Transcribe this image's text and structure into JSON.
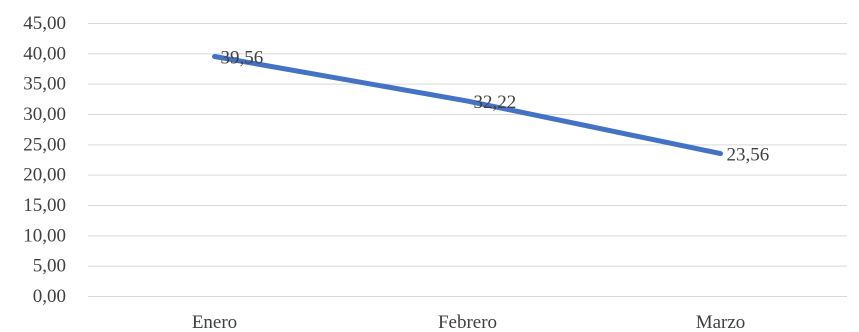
{
  "chart_data": {
    "type": "line",
    "categories": [
      "Enero",
      "Febrero",
      "Marzo"
    ],
    "series": [
      {
        "values": [
          39.56,
          32.22,
          23.56
        ],
        "value_labels": [
          "39,56",
          "32,22",
          "23,56"
        ],
        "color": "#4472c4"
      }
    ],
    "ylim": [
      0,
      45
    ],
    "y_ticks": [
      0,
      5,
      10,
      15,
      20,
      25,
      30,
      35,
      40,
      45
    ],
    "y_tick_labels": [
      "0,00",
      "5,00",
      "10,00",
      "15,00",
      "20,00",
      "25,00",
      "30,00",
      "35,00",
      "40,00",
      "45,00"
    ],
    "title": "",
    "xlabel": "",
    "ylabel": "",
    "grid": true,
    "legend": "none",
    "gridline_color": "#d9d9d9",
    "text_color": "#404040"
  }
}
